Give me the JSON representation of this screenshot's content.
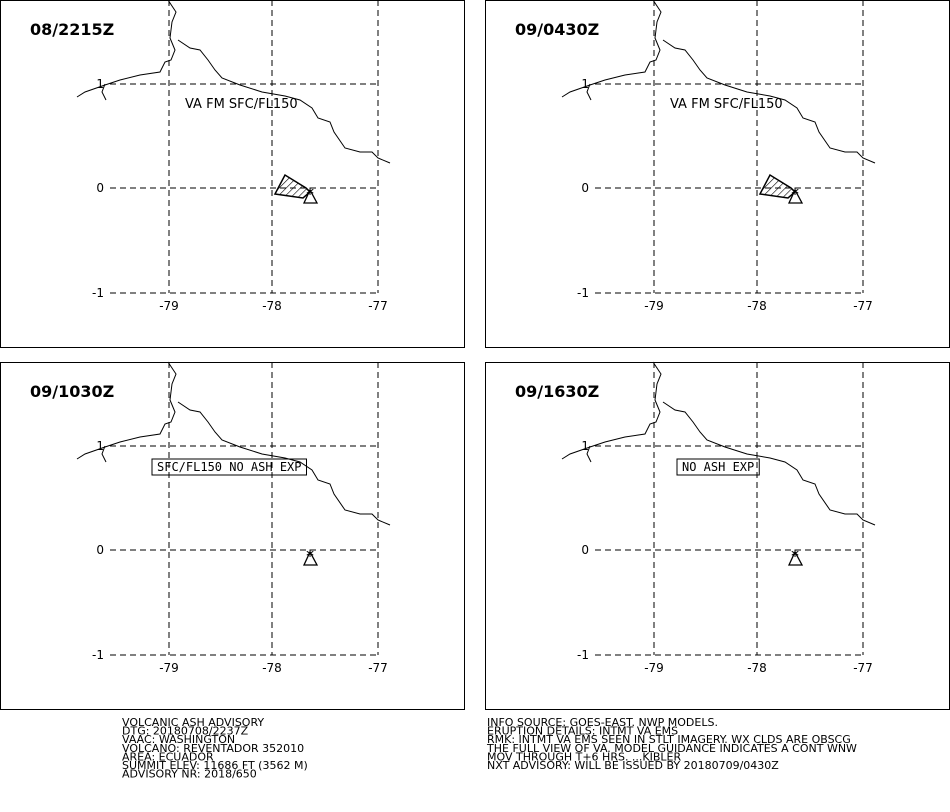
{
  "axes": {
    "lat_labels": [
      "1",
      "0",
      "-1"
    ],
    "lon_labels": [
      "-79",
      "-78",
      "-77"
    ]
  },
  "panels": [
    {
      "time": "08/2215Z",
      "annotation": "VA FM SFC/FL150"
    },
    {
      "time": "09/0430Z",
      "annotation": "VA FM SFC/FL150"
    },
    {
      "time": "09/1030Z",
      "annotation": "SFC/FL150 NO ASH EXP"
    },
    {
      "time": "09/1630Z",
      "annotation": "NO ASH EXP"
    }
  ],
  "advisory": {
    "left": [
      "VOLCANIC ASH ADVISORY",
      "DTG: 20180708/2237Z",
      "VAAC: WASHINGTON",
      "VOLCANO: REVENTADOR 352010",
      "AREA: ECUADOR",
      "SUMMIT ELEV: 11686 FT (3562 M)",
      "ADVISORY NR: 2018/650"
    ],
    "right": [
      "INFO SOURCE: GOES-EAST. NWP MODELS.",
      "ERUPTION DETAILS: INTMT VA EMS",
      "RMK: INTMT VA EMS SEEN IN STLT IMAGERY. WX CLDS ARE OBSCG",
      "THE FULL VIEW OF VA. MODEL GUIDANCE INDICATES A CONT WNW",
      "MOV THROUGH T+6 HRS. ...KIBLER",
      "NXT ADVISORY: WILL BE ISSUED BY 20180709/0430Z"
    ]
  }
}
